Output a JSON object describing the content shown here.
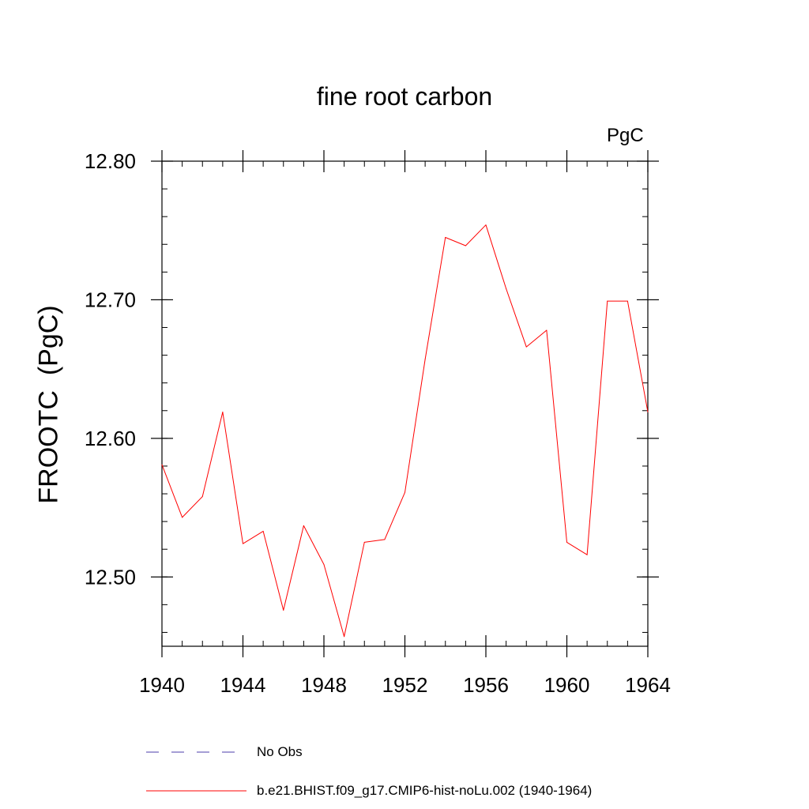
{
  "chart_data": {
    "type": "line",
    "title": "fine root carbon",
    "units_label": "PgC",
    "ylabel": "FROOTC  (PgC)",
    "xlabel": "",
    "xlim": [
      1940,
      1964
    ],
    "ylim": [
      12.45,
      12.8
    ],
    "x_ticks": [
      1940,
      1944,
      1948,
      1952,
      1956,
      1960,
      1964
    ],
    "x_tick_labels": [
      "1940",
      "1944",
      "1948",
      "1952",
      "1956",
      "1960",
      "1964"
    ],
    "y_ticks": [
      12.5,
      12.6,
      12.7,
      12.8
    ],
    "y_tick_labels": [
      "12.50",
      "12.60",
      "12.70",
      "12.80"
    ],
    "x_minor_step": 1,
    "y_minor_step": 0.02,
    "grid": false,
    "legend_position": "bottom",
    "series": [
      {
        "name": "b.e21.BHIST.f09_g17.CMIP6-hist-noLu.002 (1940-1964)",
        "color": "#ff0000",
        "style": "solid",
        "x": [
          1940,
          1941,
          1942,
          1943,
          1944,
          1945,
          1946,
          1947,
          1948,
          1949,
          1950,
          1951,
          1952,
          1953,
          1954,
          1955,
          1956,
          1957,
          1958,
          1959,
          1960,
          1961,
          1962,
          1963,
          1964
        ],
        "y": [
          12.581,
          12.543,
          12.558,
          12.619,
          12.524,
          12.533,
          12.476,
          12.537,
          12.509,
          12.457,
          12.525,
          12.527,
          12.561,
          12.657,
          12.745,
          12.739,
          12.754,
          12.708,
          12.666,
          12.678,
          12.525,
          12.516,
          12.699,
          12.699,
          12.619
        ]
      }
    ],
    "legend": [
      {
        "label": "No Obs",
        "color": "#4b3dab",
        "style": "dashed"
      },
      {
        "label": "b.e21.BHIST.f09_g17.CMIP6-hist-noLu.002 (1940-1964)",
        "color": "#ff0000",
        "style": "solid"
      }
    ]
  }
}
